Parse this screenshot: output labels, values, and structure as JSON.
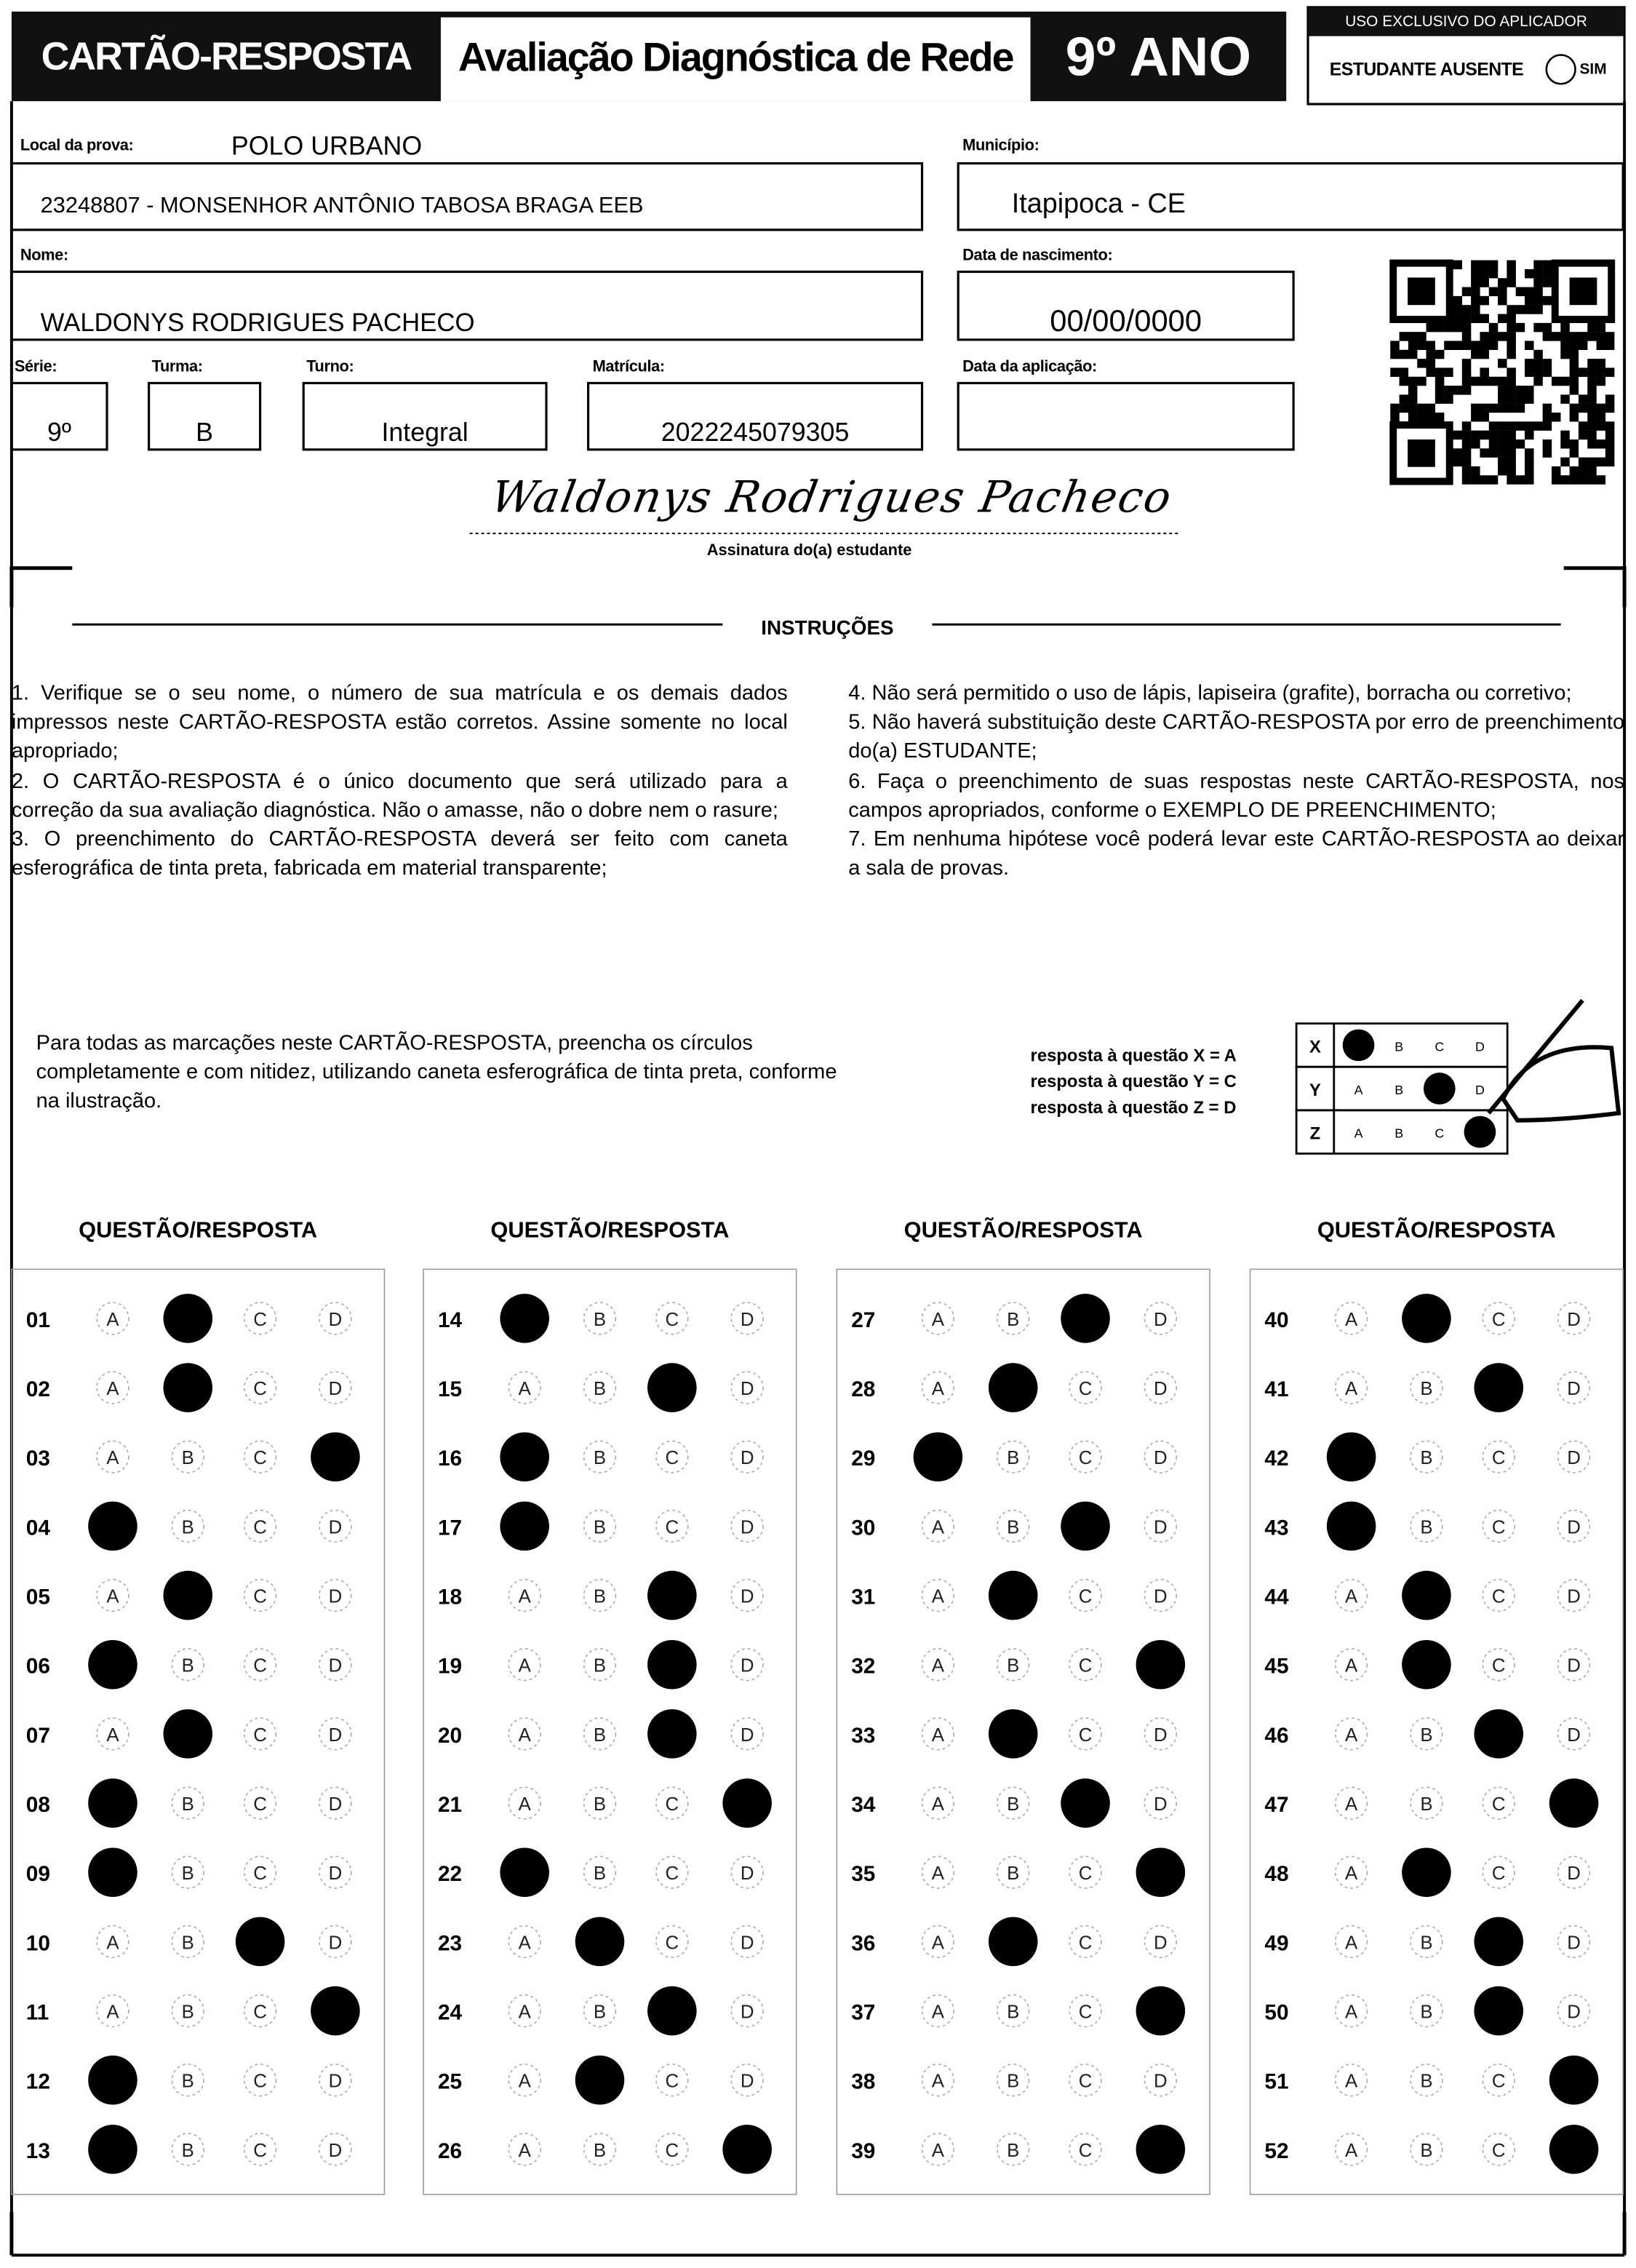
{
  "header": {
    "title": "CARTÃO-RESPOSTA",
    "exam": "Avaliação Diagnóstica de Rede",
    "grade": "9º ANO",
    "applicator_label": "USO EXCLUSIVO DO APLICADOR",
    "absent_label": "ESTUDANTE AUSENTE",
    "absent_option": "SIM"
  },
  "fields": {
    "local": {
      "label": "Local da prova:",
      "value": "POLO URBANO"
    },
    "school": {
      "value": "23248807 - MONSENHOR ANTÔNIO TABOSA BRAGA EEB"
    },
    "city": {
      "label": "Município:",
      "value": "Itapipoca - CE"
    },
    "name": {
      "label": "Nome:",
      "value": "WALDONYS RODRIGUES PACHECO"
    },
    "birth": {
      "label": "Data de nascimento:",
      "value": "00/00/0000"
    },
    "grade": {
      "label": "Série:",
      "value": "9º"
    },
    "class": {
      "label": "Turma:",
      "value": "B"
    },
    "shift": {
      "label": "Turno:",
      "value": "Integral"
    },
    "enrollment": {
      "label": "Matrícula:",
      "value": "2022245079305"
    },
    "application_date": {
      "label": "Data da aplicação:"
    }
  },
  "signature": {
    "value": "Waldonys Rodrigues Pacheco",
    "label": "Assinatura do(a) estudante"
  },
  "instructions": {
    "title": "INSTRUÇÕES",
    "items": [
      "1. Verifique se o seu nome, o número de sua matrícula e os demais dados impressos neste CARTÃO-RESPOSTA estão corretos. Assine somente no local apropriado;",
      "2. O CARTÃO-RESPOSTA é o único documento que será utilizado para a correção da sua avaliação diagnóstica. Não o amasse, não o dobre nem o rasure;",
      "3. O preenchimento do CARTÃO-RESPOSTA deverá ser feito com caneta esferográfica de tinta preta, fabricada em material transparente;",
      "4. Não será permitido o uso de lápis, lapiseira (grafite), borracha ou corretivo;",
      "5. Não haverá substituição deste CARTÃO-RESPOSTA por erro de preenchimento do(a) ESTUDANTE;",
      "6. Faça o preenchimento de suas respostas neste CARTÃO-RESPOSTA, nos campos apropriados, conforme o EXEMPLO DE PREENCHIMENTO;",
      "7. Em nenhuma hipótese você poderá levar este CARTÃO-RESPOSTA ao deixar a sala de provas."
    ]
  },
  "fill_note": "Para todas as marcações neste CARTÃO-RESPOSTA, preencha os círculos completamente e com nitidez, utilizando caneta esferográfica de tinta preta, conforme na ilustração.",
  "example": {
    "legend": [
      "resposta à questão X = A",
      "resposta à questão Y = C",
      "resposta à questão Z = D"
    ],
    "options": [
      "A",
      "B",
      "C",
      "D"
    ],
    "rows": [
      {
        "label": "X",
        "answer": "A"
      },
      {
        "label": "Y",
        "answer": "C"
      },
      {
        "label": "Z",
        "answer": "D"
      }
    ]
  },
  "answer_sheet": {
    "column_title": "QUESTÃO/RESPOSTA",
    "options": [
      "A",
      "B",
      "C",
      "D"
    ],
    "questions": [
      {
        "number": "01",
        "answer": "B"
      },
      {
        "number": "02",
        "answer": "B"
      },
      {
        "number": "03",
        "answer": "D"
      },
      {
        "number": "04",
        "answer": "A"
      },
      {
        "number": "05",
        "answer": "B"
      },
      {
        "number": "06",
        "answer": "A"
      },
      {
        "number": "07",
        "answer": "B"
      },
      {
        "number": "08",
        "answer": "A"
      },
      {
        "number": "09",
        "answer": "A"
      },
      {
        "number": "10",
        "answer": "C"
      },
      {
        "number": "11",
        "answer": "D"
      },
      {
        "number": "12",
        "answer": "A"
      },
      {
        "number": "13",
        "answer": "A"
      },
      {
        "number": "14",
        "answer": "A"
      },
      {
        "number": "15",
        "answer": "C"
      },
      {
        "number": "16",
        "answer": "A"
      },
      {
        "number": "17",
        "answer": "A"
      },
      {
        "number": "18",
        "answer": "C"
      },
      {
        "number": "19",
        "answer": "C"
      },
      {
        "number": "20",
        "answer": "C"
      },
      {
        "number": "21",
        "answer": "D"
      },
      {
        "number": "22",
        "answer": "A"
      },
      {
        "number": "23",
        "answer": "B"
      },
      {
        "number": "24",
        "answer": "C"
      },
      {
        "number": "25",
        "answer": "B"
      },
      {
        "number": "26",
        "answer": "D"
      },
      {
        "number": "27",
        "answer": "C"
      },
      {
        "number": "28",
        "answer": "B"
      },
      {
        "number": "29",
        "answer": "A"
      },
      {
        "number": "30",
        "answer": "C"
      },
      {
        "number": "31",
        "answer": "B"
      },
      {
        "number": "32",
        "answer": "D"
      },
      {
        "number": "33",
        "answer": "B"
      },
      {
        "number": "34",
        "answer": "C"
      },
      {
        "number": "35",
        "answer": "D"
      },
      {
        "number": "36",
        "answer": "B"
      },
      {
        "number": "37",
        "answer": "D"
      },
      {
        "number": "38",
        "answer": null
      },
      {
        "number": "39",
        "answer": "D"
      },
      {
        "number": "40",
        "answer": "B"
      },
      {
        "number": "41",
        "answer": "C"
      },
      {
        "number": "42",
        "answer": "A"
      },
      {
        "number": "43",
        "answer": "A"
      },
      {
        "number": "44",
        "answer": "B"
      },
      {
        "number": "45",
        "answer": "B"
      },
      {
        "number": "46",
        "answer": "C"
      },
      {
        "number": "47",
        "answer": "D"
      },
      {
        "number": "48",
        "answer": "B"
      },
      {
        "number": "49",
        "answer": "C"
      },
      {
        "number": "50",
        "answer": "C"
      },
      {
        "number": "51",
        "answer": "D"
      },
      {
        "number": "52",
        "answer": "D"
      }
    ]
  }
}
